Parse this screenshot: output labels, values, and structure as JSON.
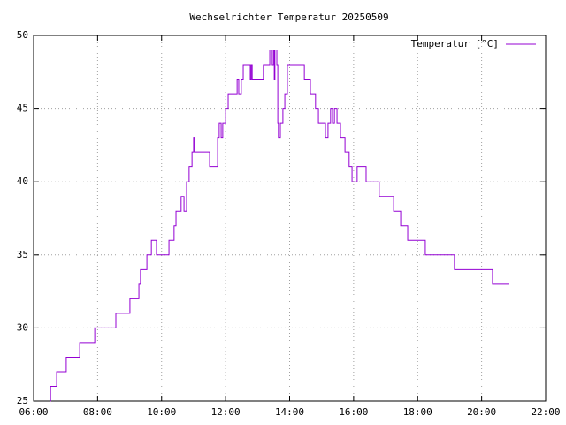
{
  "chart_data": {
    "type": "line",
    "title": "Wechselrichter Temperatur 20250509",
    "xlim": [
      6,
      22
    ],
    "xticks": [
      {
        "value": 6,
        "label": "06:00"
      },
      {
        "value": 8,
        "label": "08:00"
      },
      {
        "value": 10,
        "label": "10:00"
      },
      {
        "value": 12,
        "label": "12:00"
      },
      {
        "value": 14,
        "label": "14:00"
      },
      {
        "value": 16,
        "label": "16:00"
      },
      {
        "value": 18,
        "label": "18:00"
      },
      {
        "value": 20,
        "label": "20:00"
      },
      {
        "value": 22,
        "label": "22:00"
      }
    ],
    "ylim": [
      25,
      50
    ],
    "yticks": [
      25,
      30,
      35,
      40,
      45,
      50
    ],
    "grid": true,
    "legend": "top-right",
    "x": [
      6.5,
      6.53,
      6.53,
      6.72,
      6.72,
      7.02,
      7.02,
      7.44,
      7.44,
      7.91,
      7.91,
      8.57,
      8.57,
      9.01,
      9.01,
      9.29,
      9.29,
      9.34,
      9.34,
      9.54,
      9.54,
      9.68,
      9.68,
      9.84,
      9.84,
      10.23,
      10.23,
      10.39,
      10.39,
      10.45,
      10.45,
      10.61,
      10.61,
      10.7,
      10.7,
      10.78,
      10.78,
      10.86,
      10.86,
      10.95,
      10.95,
      11.0,
      11.0,
      11.03,
      11.03,
      11.5,
      11.5,
      11.75,
      11.75,
      11.8,
      11.8,
      11.86,
      11.86,
      11.91,
      11.91,
      12.0,
      12.0,
      12.08,
      12.08,
      12.36,
      12.36,
      12.41,
      12.41,
      12.49,
      12.49,
      12.55,
      12.55,
      12.77,
      12.77,
      12.8,
      12.8,
      12.83,
      12.83,
      13.18,
      13.18,
      13.38,
      13.38,
      13.43,
      13.43,
      13.49,
      13.49,
      13.52,
      13.52,
      13.54,
      13.54,
      13.6,
      13.6,
      13.63,
      13.63,
      13.65,
      13.65,
      13.71,
      13.71,
      13.79,
      13.79,
      13.85,
      13.85,
      13.93,
      13.93,
      14.46,
      14.46,
      14.65,
      14.65,
      14.81,
      14.81,
      14.9,
      14.9,
      15.12,
      15.12,
      15.2,
      15.2,
      15.28,
      15.28,
      15.34,
      15.34,
      15.4,
      15.4,
      15.48,
      15.48,
      15.59,
      15.59,
      15.73,
      15.73,
      15.86,
      15.86,
      15.95,
      15.95,
      16.11,
      16.11,
      16.39,
      16.39,
      16.8,
      16.8,
      17.25,
      17.25,
      17.47,
      17.47,
      17.69,
      17.69,
      18.24,
      18.24,
      19.15,
      19.15,
      20.34,
      20.34,
      20.84
    ],
    "series": [
      {
        "name": "Temperatur [°C]",
        "color": "#9400d3",
        "values": [
          25,
          25,
          26,
          26,
          27,
          27,
          28,
          28,
          29,
          29,
          30,
          30,
          31,
          31,
          32,
          32,
          33,
          33,
          34,
          34,
          35,
          35,
          36,
          36,
          35,
          35,
          36,
          36,
          37,
          37,
          38,
          38,
          39,
          39,
          38,
          38,
          40,
          40,
          41,
          41,
          42,
          42,
          43,
          43,
          42,
          42,
          41,
          41,
          43,
          43,
          44,
          44,
          43,
          43,
          44,
          44,
          45,
          45,
          46,
          46,
          47,
          47,
          46,
          46,
          47,
          47,
          48,
          48,
          47,
          47,
          48,
          48,
          47,
          47,
          48,
          48,
          49,
          49,
          48,
          48,
          49,
          49,
          47,
          47,
          49,
          49,
          48,
          48,
          44,
          44,
          43,
          43,
          44,
          44,
          45,
          45,
          46,
          46,
          48,
          48,
          47,
          47,
          46,
          46,
          45,
          45,
          44,
          44,
          43,
          43,
          44,
          44,
          45,
          45,
          44,
          44,
          45,
          45,
          44,
          44,
          43,
          43,
          42,
          42,
          41,
          41,
          40,
          40,
          41,
          41,
          40,
          40,
          39,
          39,
          38,
          38,
          37,
          37,
          36,
          36,
          35,
          35,
          34,
          34,
          33,
          33
        ]
      }
    ]
  }
}
